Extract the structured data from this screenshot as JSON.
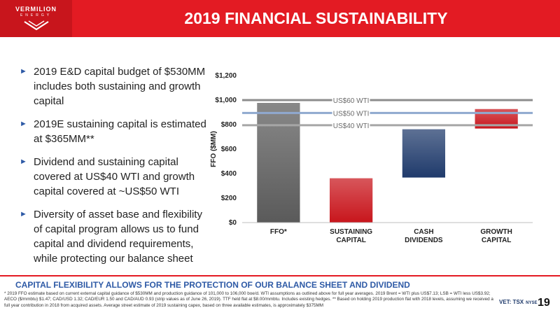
{
  "slide": {
    "company": "VERMILION",
    "company_sub": "ENERGY",
    "title": "2019 FINANCIAL SUSTAINABILITY",
    "page_number": "19",
    "exchange": "VET: TSX",
    "exchange_2": "NYSE"
  },
  "bullets": [
    "2019 E&D capital budget of $530MM includes both sustaining and growth capital",
    "2019E sustaining capital is estimated at $365MM**",
    "Dividend and sustaining capital covered at US$40 WTI and growth capital covered at ~US$50 WTI",
    "Diversity of asset base and flexibility of capital program allows us to fund capital and dividend requirements, while protecting our balance sheet"
  ],
  "conclusion": "CAPITAL FLEXIBILITY ALLOWS FOR THE PROTECTION OF OUR BALANCE SHEET AND DIVIDEND",
  "footnote": "* 2019 FFO estimate based on current external capital guidance of $530MM and production guidance of 101,000 to 106,000 boe/d. WTI assumptions as outlined above for full year averages. 2019 Brent = WTI plus US$7.13; LSB = WTI less US$3.92; AECO ($/mmbtu) $1.47; CAD/USD 1.32; CAD/EUR 1.50 and CAD/AUD 0.93 (strip values as of June 26, 2019). TTF held flat at $8.00/mmbtu. Includes existing hedges. ** Based on holding 2019 production flat with 2018 levels, assuming we received a full year contribution in 2018 from acquired assets. Average street estimate of 2019 sustaining capex, based on three available estimates, is approximately $375MM",
  "chart_data": {
    "type": "bar",
    "subtype": "waterfall",
    "categories": [
      "FFO*",
      "SUSTAINING CAPITAL",
      "CASH DIVIDENDS",
      "GROWTH CAPITAL"
    ],
    "bars": [
      {
        "category": "FFO*",
        "start": 0,
        "end": 980,
        "color": "#5a5a5a"
      },
      {
        "category": "SUSTAINING CAPITAL",
        "start": 0,
        "end": 365,
        "color": "#c8151c"
      },
      {
        "category": "CASH DIVIDENDS",
        "start": 365,
        "end": 765,
        "color": "#1f3a6b"
      },
      {
        "category": "GROWTH CAPITAL",
        "start": 765,
        "end": 930,
        "color": "#c8151c"
      }
    ],
    "reference_lines": [
      {
        "label": "US$60 WTI",
        "value": 1000,
        "color": "#8c8c8c"
      },
      {
        "label": "US$50 WTI",
        "value": 895,
        "color": "#8fa9cf"
      },
      {
        "label": "US$40 WTI",
        "value": 795,
        "color": "#a6a6a6"
      }
    ],
    "y_ticks": [
      "$0",
      "$200",
      "$400",
      "$600",
      "$800",
      "$1,000",
      "$1,200"
    ],
    "ylabel": "FFO ($MM)",
    "ylim": [
      0,
      1200
    ],
    "grid": false,
    "legend": "none"
  }
}
